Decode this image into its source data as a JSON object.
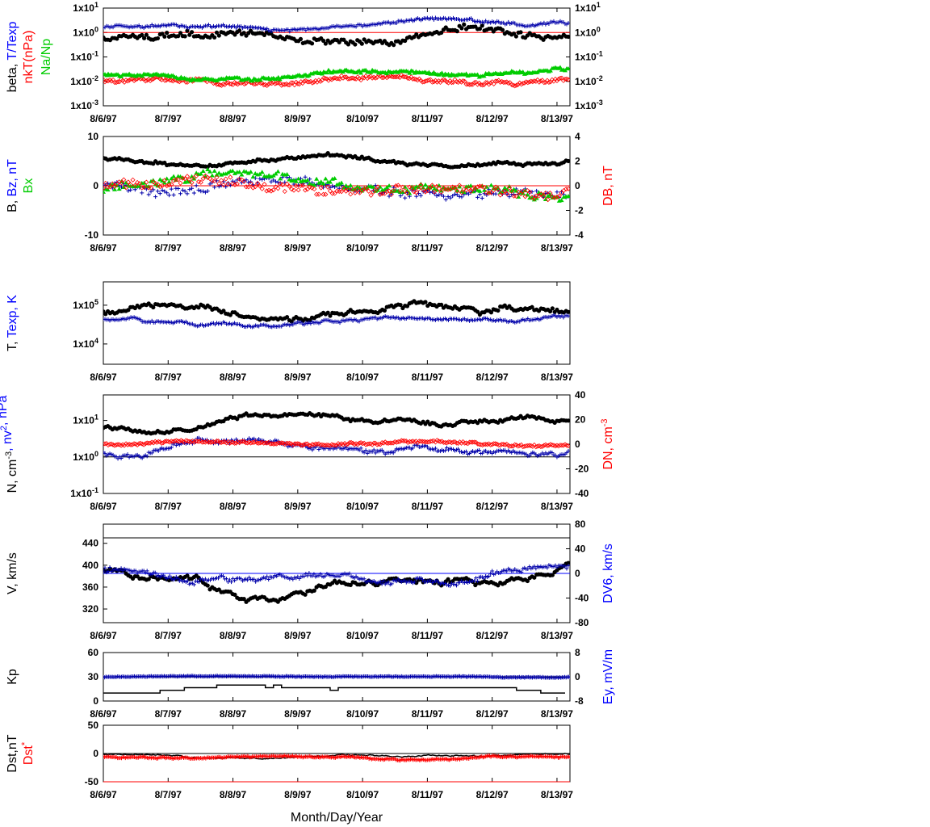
{
  "chart_data": [
    {
      "type": "scatter",
      "xaxis": {
        "dates": [
          "8/6/97",
          "8/7/97",
          "8/8/97",
          "8/9/97",
          "8/10/97",
          "8/11/97",
          "8/12/97",
          "8/13/97"
        ],
        "range_days": [
          0,
          7.2
        ]
      },
      "left_axis": {
        "scale": "log",
        "range": [
          0.001,
          10
        ],
        "ticks": [
          {
            "text": "1x10",
            "sup": "1"
          },
          {
            "text": "1x10",
            "sup": "0"
          },
          {
            "text": "1x10",
            "sup": "-1"
          },
          {
            "text": "1x10",
            "sup": "-2"
          },
          {
            "text": "1x10",
            "sup": "-3"
          }
        ]
      },
      "right_axis": {
        "scale": "log",
        "range": [
          0.001,
          10
        ],
        "ticks": [
          {
            "text": "1x10",
            "sup": "1"
          },
          {
            "text": "1x10",
            "sup": "0"
          },
          {
            "text": "1x10",
            "sup": "-1"
          },
          {
            "text": "1x10",
            "sup": "-2"
          },
          {
            "text": "1x10",
            "sup": "-3"
          }
        ]
      },
      "ylabel_parts": [
        {
          "text": "beta, ",
          "color": "#000000",
          "col": 0
        },
        {
          "text": "T/Texp",
          "color": "#0000ff",
          "col": 0
        },
        {
          "text": "nkT(nPa)",
          "color": "#ff0000",
          "col": 1
        },
        {
          "text": "Na/Np",
          "color": "#00cc00",
          "col": 2
        }
      ],
      "reference_lines": [
        {
          "y": 1,
          "color": "#ff0000"
        }
      ],
      "series": [
        {
          "label": "beta",
          "color": "#000000",
          "marker": "dot",
          "axis": "left",
          "mean": 0.9,
          "vol": 0.35,
          "noise": 0.2,
          "seed": 11,
          "step": 0.035
        },
        {
          "label": "T/Texp",
          "color": "#0000aa",
          "marker": "plus",
          "axis": "left",
          "mean": 2.0,
          "vol": 0.25,
          "noise": 0.08,
          "seed": 12,
          "step": 0.025
        },
        {
          "label": "nkT",
          "color": "#ff0000",
          "marker": "diamond",
          "axis": "left",
          "mean": 0.012,
          "vol": 0.25,
          "noise": 0.12,
          "seed": 13,
          "step": 0.025
        },
        {
          "label": "Na/Np",
          "color": "#00cc00",
          "marker": "triangle",
          "axis": "left",
          "mean": 0.02,
          "vol": 0.25,
          "noise": 0.1,
          "seed": 14,
          "step": 0.025
        }
      ]
    },
    {
      "type": "scatter",
      "xaxis": {
        "dates": [
          "8/6/97",
          "8/7/97",
          "8/8/97",
          "8/9/97",
          "8/10/97",
          "8/11/97",
          "8/12/97",
          "8/13/97"
        ],
        "range_days": [
          0,
          7.2
        ]
      },
      "left_axis": {
        "scale": "linear",
        "range": [
          -10,
          10
        ],
        "ticks": [
          {
            "text": "10"
          },
          {
            "text": "0"
          },
          {
            "text": "-10"
          }
        ]
      },
      "right_axis": {
        "scale": "linear",
        "range": [
          -4,
          4
        ],
        "ticks": [
          {
            "text": "4"
          },
          {
            "text": "2"
          },
          {
            "text": "0"
          },
          {
            "text": "-2"
          },
          {
            "text": "-4"
          }
        ]
      },
      "ylabel_parts": [
        {
          "text": "B, ",
          "color": "#000000",
          "col": 0
        },
        {
          "text": "Bz, nT",
          "color": "#0000ff",
          "col": 0
        },
        {
          "text": "Bx",
          "color": "#00cc00",
          "col": 1
        }
      ],
      "right_label_parts": [
        {
          "text": "DB, nT",
          "color": "#ff0000"
        }
      ],
      "reference_lines": [
        {
          "y": 0,
          "color": "#ff0000"
        }
      ],
      "series": [
        {
          "label": "B",
          "color": "#000000",
          "marker": "dot",
          "axis": "left",
          "mean": 5,
          "vol": 1.8,
          "noise": 0.4,
          "seed": 21,
          "step": 0.035
        },
        {
          "label": "Bz",
          "color": "#0000aa",
          "marker": "plus",
          "axis": "left",
          "mean": 0,
          "vol": 2.5,
          "noise": 1.5,
          "seed": 22,
          "step": 0.035
        },
        {
          "label": "Bx",
          "color": "#00cc00",
          "marker": "triangle",
          "axis": "left",
          "mean": -1,
          "vol": 2.5,
          "noise": 1.5,
          "seed": 23,
          "step": 0.035
        },
        {
          "label": "DB",
          "color": "#ff0000",
          "marker": "diamond",
          "axis": "right",
          "mean": 0,
          "vol": 0.8,
          "noise": 0.7,
          "seed": 24,
          "step": 0.035
        }
      ]
    },
    {
      "type": "scatter",
      "xaxis": {
        "dates": [
          "8/6/97",
          "8/7/97",
          "8/8/97",
          "8/9/97",
          "8/10/97",
          "8/11/97",
          "8/12/97",
          "8/13/97"
        ],
        "range_days": [
          0,
          7.2
        ]
      },
      "left_axis": {
        "scale": "log",
        "range": [
          3000,
          400000
        ],
        "ticks": [
          {
            "text": "1x10",
            "sup": "5",
            "value": 100000
          },
          {
            "text": "1x10",
            "sup": "4",
            "value": 10000
          }
        ]
      },
      "ylabel_parts": [
        {
          "text": "T, ",
          "color": "#000000",
          "col": 0
        },
        {
          "text": "Texp, K",
          "color": "#0000ff",
          "col": 0
        }
      ],
      "series": [
        {
          "label": "T",
          "color": "#000000",
          "marker": "dot",
          "axis": "left",
          "mean": 70000,
          "vol": 0.35,
          "noise": 0.08,
          "seed": 31,
          "step": 0.035
        },
        {
          "label": "Texp",
          "color": "#0000aa",
          "marker": "plus",
          "axis": "left",
          "mean": 40000,
          "vol": 0.2,
          "noise": 0.04,
          "seed": 32,
          "step": 0.025
        }
      ]
    },
    {
      "type": "scatter",
      "xaxis": {
        "dates": [
          "8/6/97",
          "8/7/97",
          "8/8/97",
          "8/9/97",
          "8/10/97",
          "8/11/97",
          "8/12/97",
          "8/13/97"
        ],
        "range_days": [
          0,
          7.2
        ]
      },
      "left_axis": {
        "scale": "log",
        "range": [
          0.1,
          50
        ],
        "ticks": [
          {
            "text": "1x10",
            "sup": "1",
            "value": 10
          },
          {
            "text": "1x10",
            "sup": "0",
            "value": 1
          },
          {
            "text": "1x10",
            "sup": "-1",
            "value": 0.1
          }
        ]
      },
      "right_axis": {
        "scale": "linear",
        "range": [
          -50,
          50
        ],
        "ticks": [
          {
            "text": "40"
          },
          {
            "text": "20"
          },
          {
            "text": "0"
          },
          {
            "text": "-20"
          },
          {
            "text": "-40"
          }
        ]
      },
      "ylabel_parts": [
        {
          "text": "N, cm",
          "color": "#000000",
          "col": 0,
          "sup": "-3"
        },
        {
          "text": ", nv",
          "color": "#0000ff",
          "col": 0,
          "sup": "2"
        },
        {
          "text": ", nPa",
          "color": "#0000ff",
          "col": 0
        }
      ],
      "right_label_parts": [
        {
          "text": "DN, cm",
          "color": "#ff0000",
          "sup": "-3"
        }
      ],
      "reference_lines": [
        {
          "y": 1,
          "color": "#000000"
        }
      ],
      "series": [
        {
          "label": "N",
          "color": "#000000",
          "marker": "dot",
          "axis": "left",
          "mean": 8,
          "vol": 0.35,
          "noise": 0.05,
          "seed": 41,
          "step": 0.035
        },
        {
          "label": "nv2",
          "color": "#0000aa",
          "marker": "plus",
          "axis": "left",
          "mean": 1.6,
          "vol": 0.3,
          "noise": 0.08,
          "seed": 42,
          "step": 0.025
        },
        {
          "label": "DN",
          "color": "#ff0000",
          "marker": "diamond",
          "axis": "right",
          "mean": 0,
          "vol": 3,
          "noise": 2,
          "seed": 43,
          "step": 0.025
        }
      ]
    },
    {
      "type": "scatter",
      "xaxis": {
        "dates": [
          "8/6/97",
          "8/7/97",
          "8/8/97",
          "8/9/97",
          "8/10/97",
          "8/11/97",
          "8/12/97",
          "8/13/97"
        ],
        "range_days": [
          0,
          7.2
        ]
      },
      "left_axis": {
        "scale": "linear",
        "range": [
          295,
          475
        ],
        "ticks": [
          {
            "text": "440",
            "value": 440
          },
          {
            "text": "400",
            "value": 400
          },
          {
            "text": "360",
            "value": 360
          },
          {
            "text": "320",
            "value": 320
          }
        ]
      },
      "right_axis": {
        "scale": "linear",
        "range": [
          -80,
          80
        ],
        "ticks": [
          {
            "text": "80"
          },
          {
            "text": "40"
          },
          {
            "text": "0"
          },
          {
            "text": "-40"
          },
          {
            "text": "-80"
          }
        ]
      },
      "ylabel_parts": [
        {
          "text": "V, km/s",
          "color": "#000000",
          "col": 0
        }
      ],
      "right_label_parts": [
        {
          "text": "DV6, km/s",
          "color": "#0000ff"
        }
      ],
      "reference_lines": [
        {
          "y": 450,
          "color": "#000000"
        },
        {
          "y": 390,
          "color": "#0000ff"
        }
      ],
      "series": [
        {
          "label": "V",
          "color": "#000000",
          "marker": "dot",
          "axis": "left",
          "mean": 370,
          "vol": 40,
          "noise": 3,
          "seed": 51,
          "step": 0.035
        },
        {
          "label": "DV6",
          "color": "#0000aa",
          "marker": "plus",
          "axis": "right",
          "mean": 0,
          "vol": 18,
          "noise": 6,
          "seed": 52,
          "step": 0.025
        }
      ]
    },
    {
      "type": "line",
      "xaxis": {
        "dates": [
          "8/6/97",
          "8/7/97",
          "8/8/97",
          "8/9/97",
          "8/10/97",
          "8/11/97",
          "8/12/97",
          "8/13/97"
        ],
        "range_days": [
          0,
          7.2
        ]
      },
      "left_axis": {
        "scale": "linear",
        "range": [
          0,
          60
        ],
        "ticks": [
          {
            "text": "60"
          },
          {
            "text": "30"
          },
          {
            "text": "0"
          }
        ]
      },
      "right_axis": {
        "scale": "linear",
        "range": [
          -8,
          8
        ],
        "ticks": [
          {
            "text": "8"
          },
          {
            "text": "0"
          },
          {
            "text": "-8"
          }
        ]
      },
      "ylabel_parts": [
        {
          "text": "Kp",
          "color": "#000000",
          "col": 0
        }
      ],
      "right_label_parts": [
        {
          "text": "Ey,  mV/m",
          "color": "#0000ff"
        }
      ],
      "reference_lines": [
        {
          "y": 30,
          "color": "#000000"
        }
      ],
      "series": [
        {
          "label": "Kp",
          "color": "#000000",
          "marker": "step",
          "axis": "left",
          "mean": 13,
          "vol": 8,
          "noise": 0,
          "seed": 61,
          "step": 0.125
        },
        {
          "label": "Ey",
          "color": "#0000aa",
          "marker": "plus",
          "axis": "right",
          "mean": 0,
          "vol": 0.25,
          "noise": 0.25,
          "seed": 62,
          "step": 0.02
        }
      ]
    },
    {
      "type": "line",
      "xaxis": {
        "dates": [
          "8/6/97",
          "8/7/97",
          "8/8/97",
          "8/9/97",
          "8/10/97",
          "8/11/97",
          "8/12/97",
          "8/13/97"
        ],
        "range_days": [
          0,
          7.2
        ]
      },
      "left_axis": {
        "scale": "linear",
        "range": [
          -50,
          50
        ],
        "ticks": [
          {
            "text": "50"
          },
          {
            "text": "0"
          },
          {
            "text": "-50"
          }
        ]
      },
      "ylabel_parts": [
        {
          "text": "Dst,nT",
          "color": "#000000",
          "col": 0
        },
        {
          "text": "Dst",
          "color": "#ff0000",
          "col": 1,
          "sup": "*"
        }
      ],
      "reference_lines": [
        {
          "y": 0,
          "color": "#000000"
        },
        {
          "y": -50,
          "color": "#ff0000"
        }
      ],
      "series": [
        {
          "label": "Dst",
          "color": "#000000",
          "marker": "line",
          "axis": "left",
          "mean": -5,
          "vol": 6,
          "noise": 1,
          "seed": 71,
          "step": 0.02
        },
        {
          "label": "Dst*",
          "color": "#ff0000",
          "marker": "plus",
          "axis": "left",
          "mean": -8,
          "vol": 6,
          "noise": 2,
          "seed": 72,
          "step": 0.02
        }
      ],
      "xlabel": "Month/Day/Year"
    }
  ]
}
